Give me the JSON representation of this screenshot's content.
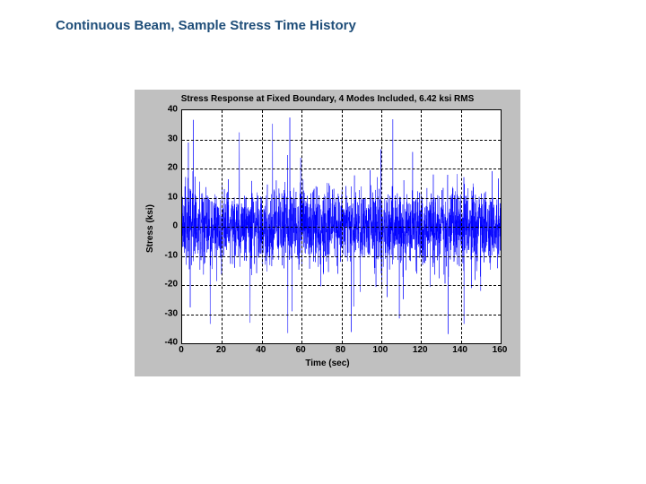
{
  "page": {
    "title": "Continuous Beam, Sample Stress Time History",
    "title_color": "#1f4e79"
  },
  "chart": {
    "type": "line",
    "title": "Stress Response at Fixed Boundary, 4 Modes Included, 6.42 ksi RMS",
    "xlabel": "Time (sec)",
    "ylabel": "Stress (ksi)",
    "title_fontsize": 10,
    "label_fontsize": 10,
    "tick_fontsize": 10,
    "background_color": "#c0c0c0",
    "plot_background_color": "#ffffff",
    "axis_color": "#000000",
    "grid_color": "#000000",
    "grid_dash": "2,3",
    "series_color": "#0000ff",
    "series_linewidth": 0.5,
    "xlim": [
      0,
      160
    ],
    "ylim": [
      -40,
      40
    ],
    "xticks": [
      0,
      20,
      40,
      60,
      80,
      100,
      120,
      140,
      160
    ],
    "yticks": [
      -40,
      -30,
      -20,
      -10,
      0,
      10,
      20,
      30,
      40
    ],
    "n_signal_points": 2400,
    "signal_rms": 6.42,
    "signal_abs_max": 38,
    "signal_random_seed": 17
  }
}
